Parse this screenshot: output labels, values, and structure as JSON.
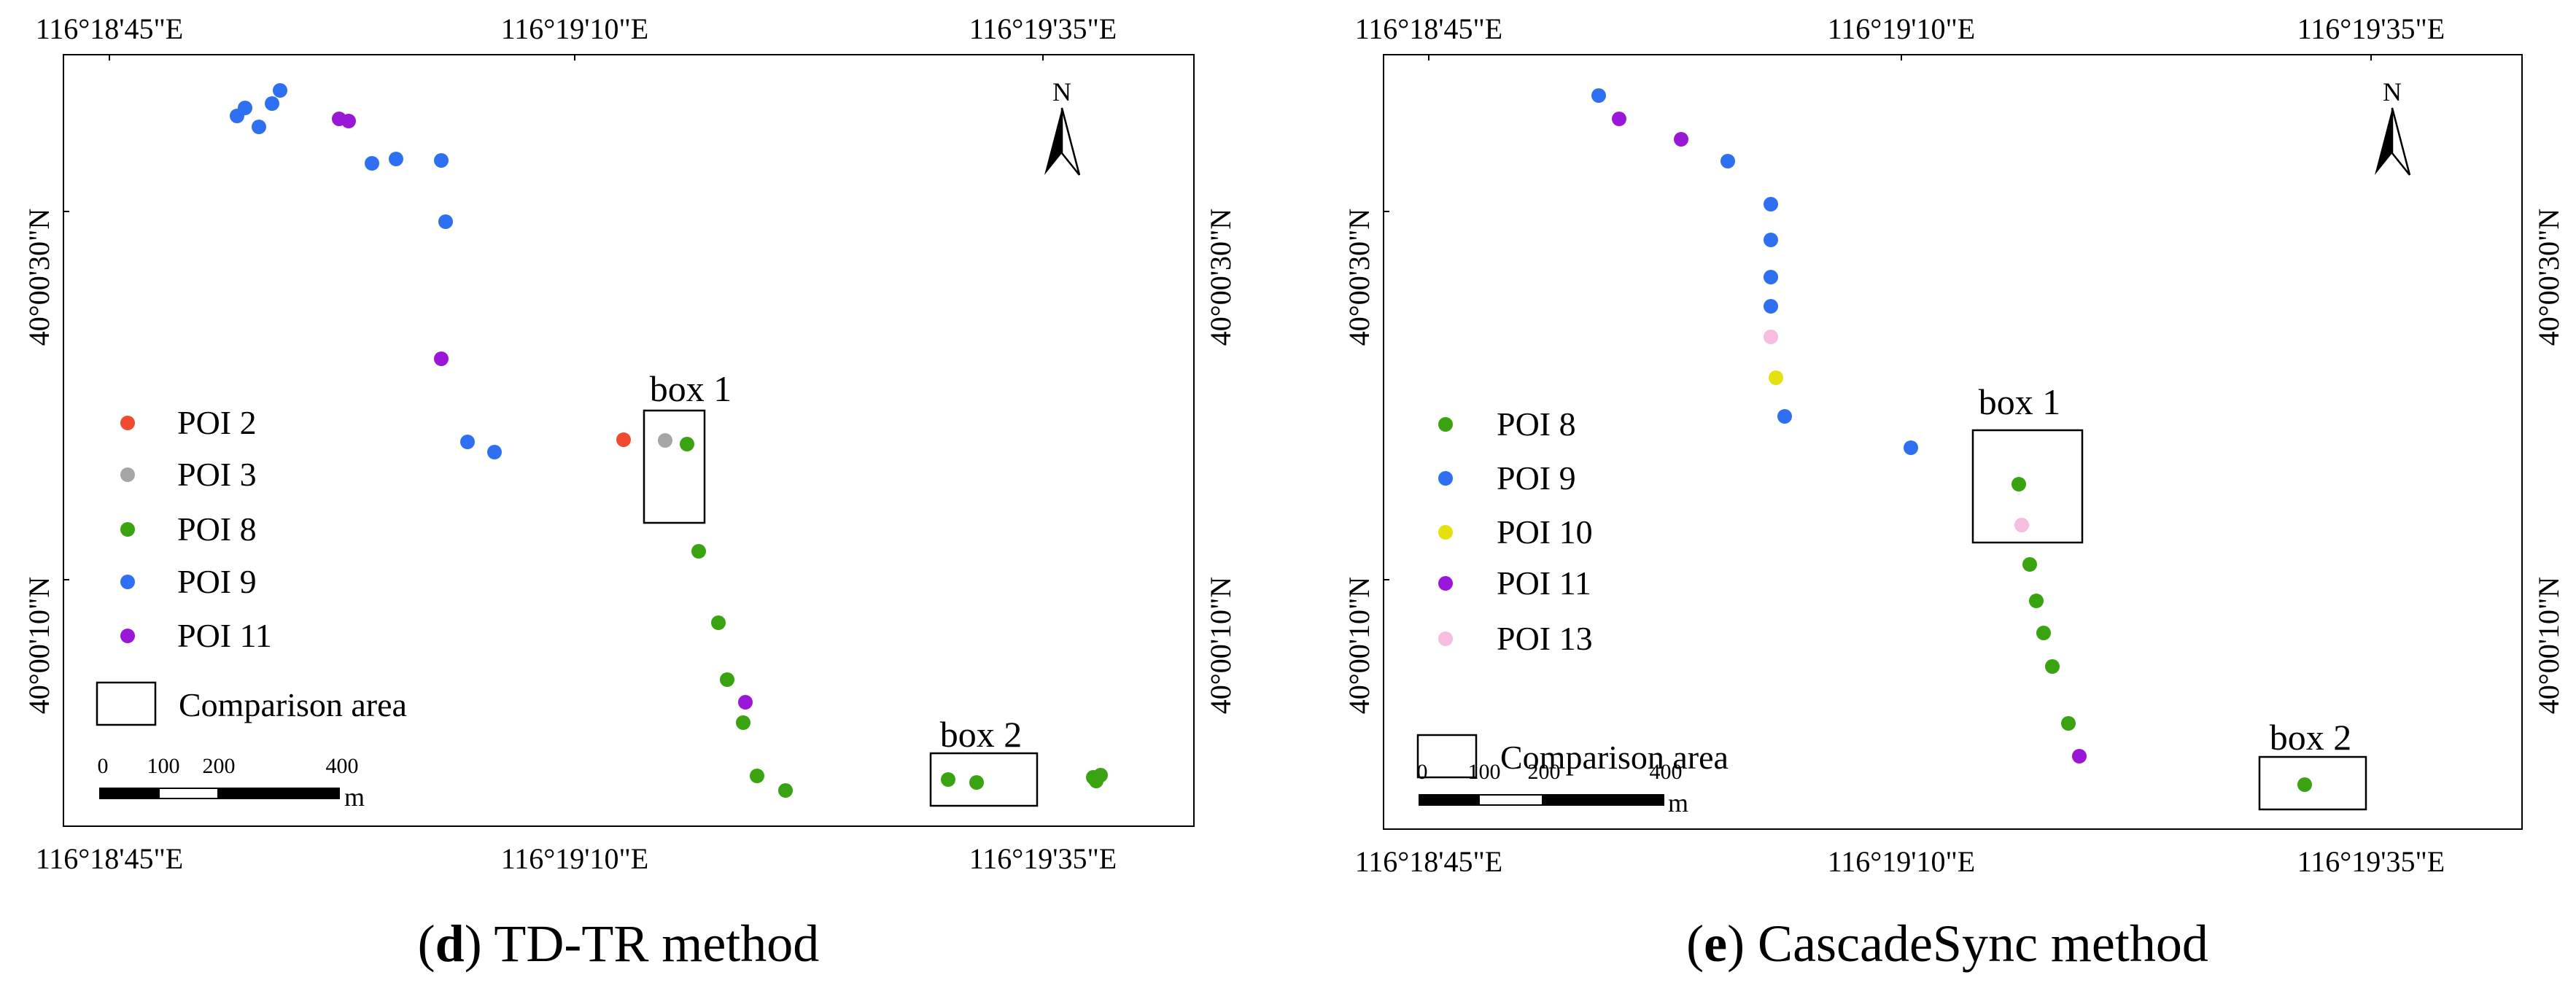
{
  "colors": {
    "poi_2": "#ef4b2f",
    "poi_3": "#a5a5a5",
    "poi_8": "#3aa312",
    "poi_9": "#2f6ff2",
    "poi_10": "#e5e10f",
    "poi_11": "#9b17d8",
    "poi_13": "#f6bde0",
    "frame": "#000000"
  },
  "scale_bar": {
    "ticks": [
      "0",
      "100",
      "200",
      "400"
    ],
    "unit": "m"
  },
  "north_label": "N",
  "panels": [
    {
      "id": "d",
      "caption_letter": "d",
      "caption_text": "TD-TR method",
      "lon_ticks": [
        "116°18'45\"E",
        "116°19'10\"E",
        "116°19'35\"E"
      ],
      "lat_ticks": [
        "40°00'30\"N",
        "40°00'10\"N"
      ],
      "legend": [
        {
          "label": "POI 2",
          "color_key": "poi_2"
        },
        {
          "label": "POI 3",
          "color_key": "poi_3"
        },
        {
          "label": "POI 8",
          "color_key": "poi_8"
        },
        {
          "label": "POI 9",
          "color_key": "poi_9"
        },
        {
          "label": "POI 11",
          "color_key": "poi_11"
        }
      ],
      "comparison_label": "Comparison area",
      "boxes": [
        {
          "label": "box 1"
        },
        {
          "label": "box 2"
        }
      ]
    },
    {
      "id": "e",
      "caption_letter": "e",
      "caption_text": "CascadeSync method",
      "lon_ticks": [
        "116°18'45\"E",
        "116°19'10\"E",
        "116°19'35\"E"
      ],
      "lat_ticks": [
        "40°00'30\"N",
        "40°00'10\"N"
      ],
      "legend": [
        {
          "label": "POI 8",
          "color_key": "poi_8"
        },
        {
          "label": "POI 9",
          "color_key": "poi_9"
        },
        {
          "label": "POI 10",
          "color_key": "poi_10"
        },
        {
          "label": "POI 11",
          "color_key": "poi_11"
        },
        {
          "label": "POI 13",
          "color_key": "poi_13"
        }
      ],
      "comparison_label": "Comparison area",
      "boxes": [
        {
          "label": "box 1"
        },
        {
          "label": "box 2"
        }
      ]
    }
  ]
}
